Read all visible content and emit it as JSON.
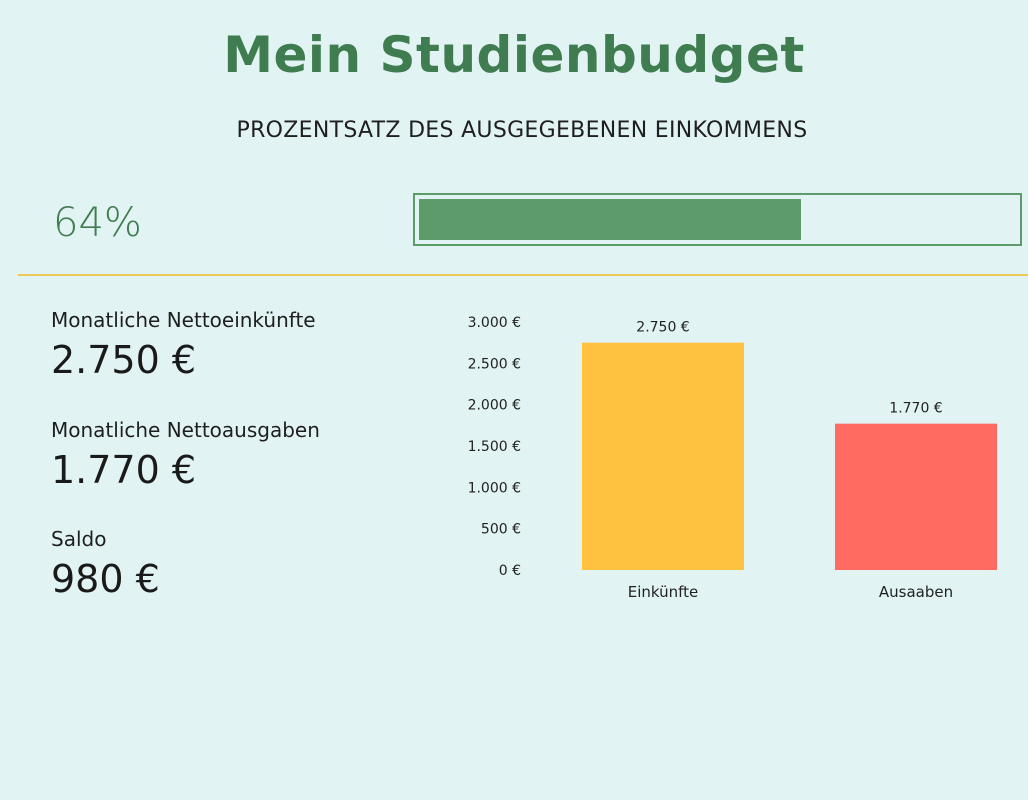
{
  "header": {
    "title": "Mein Studienbudget",
    "subtitle": "PROZENTSATZ DES AUSGEGEBENEN EINKOMMENS"
  },
  "progress": {
    "label": "64%",
    "value": 0.64,
    "fill_color": "#5d9b6b",
    "border_color": "#5d9b6b"
  },
  "stats": {
    "income_label": "Monatliche Nettoeinkünfte",
    "income_value": "2.750 €",
    "expenses_label": "Monatliche Nettoausgaben",
    "expenses_value": "1.770 €",
    "balance_label": "Saldo",
    "balance_value": "980 €"
  },
  "colors": {
    "title": "#3f7c4f",
    "divider": "#f0c75a",
    "background": "#e1f3f3"
  },
  "chart_data": {
    "type": "bar",
    "categories": [
      "Einkünfte",
      "Ausaaben"
    ],
    "values": [
      2750,
      1770
    ],
    "data_labels": [
      "2.750 €",
      "1.770 €"
    ],
    "colors": [
      "#ffc240",
      "#ff6b61"
    ],
    "ylim": [
      0,
      3000
    ],
    "yticks": [
      0,
      500,
      1000,
      1500,
      2000,
      2500,
      3000
    ],
    "ytick_labels": [
      "0 €",
      "500 €",
      "1.000 €",
      "1.500 €",
      "2.000 €",
      "2.500 €",
      "3.000 €"
    ],
    "grid": false,
    "legend": "none"
  }
}
